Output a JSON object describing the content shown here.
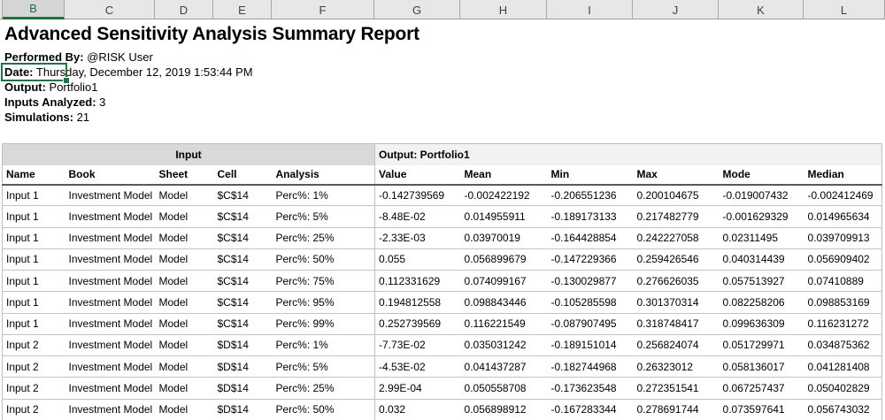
{
  "colors": {
    "accent_green": "#217346",
    "header_bar_bg": "#e7e7e7",
    "selected_header_bg": "#d5d5d5",
    "band_input_bg": "#d9d9d9",
    "band_output_bg": "#f2f2f2",
    "table_border": "#bfbfbf"
  },
  "spreadsheet": {
    "column_headers": [
      "B",
      "C",
      "D",
      "E",
      "F",
      "G",
      "H",
      "I",
      "J",
      "K",
      "L"
    ],
    "selected_column": "B"
  },
  "report": {
    "title": "Advanced Sensitivity Analysis Summary Report",
    "meta": [
      {
        "label": "Performed By:",
        "value": " @RISK User"
      },
      {
        "label": "Date:",
        "value": " Thursday, December 12, 2019 1:53:44 PM"
      },
      {
        "label": "Output:",
        "value": " Portfolio1"
      },
      {
        "label": "Inputs Analyzed:",
        "value": " 3"
      },
      {
        "label": "Simulations:",
        "value": " 21"
      }
    ]
  },
  "table": {
    "input_band": "Input",
    "output_band": "Output: Portfolio1",
    "columns": [
      "Name",
      "Book",
      "Sheet",
      "Cell",
      "Analysis",
      "Value",
      "Mean",
      "Min",
      "Max",
      "Mode",
      "Median"
    ],
    "rows": [
      [
        "Input 1",
        "Investment Model",
        "Model",
        "$C$14",
        "Perc%: 1%",
        "-0.142739569",
        "-0.002422192",
        "-0.206551236",
        "0.200104675",
        "-0.019007432",
        "-0.002412469"
      ],
      [
        "Input 1",
        "Investment Model",
        "Model",
        "$C$14",
        "Perc%: 5%",
        "-8.48E-02",
        "0.014955911",
        "-0.189173133",
        "0.217482779",
        "-0.001629329",
        "0.014965634"
      ],
      [
        "Input 1",
        "Investment Model",
        "Model",
        "$C$14",
        "Perc%: 25%",
        "-2.33E-03",
        "0.03970019",
        "-0.164428854",
        "0.242227058",
        "0.02311495",
        "0.039709913"
      ],
      [
        "Input 1",
        "Investment Model",
        "Model",
        "$C$14",
        "Perc%: 50%",
        "0.055",
        "0.056899679",
        "-0.147229366",
        "0.259426546",
        "0.040314439",
        "0.056909402"
      ],
      [
        "Input 1",
        "Investment Model",
        "Model",
        "$C$14",
        "Perc%: 75%",
        "0.112331629",
        "0.074099167",
        "-0.130029877",
        "0.276626035",
        "0.057513927",
        "0.07410889"
      ],
      [
        "Input 1",
        "Investment Model",
        "Model",
        "$C$14",
        "Perc%: 95%",
        "0.194812558",
        "0.098843446",
        "-0.105285598",
        "0.301370314",
        "0.082258206",
        "0.098853169"
      ],
      [
        "Input 1",
        "Investment Model",
        "Model",
        "$C$14",
        "Perc%: 99%",
        "0.252739569",
        "0.116221549",
        "-0.087907495",
        "0.318748417",
        "0.099636309",
        "0.116231272"
      ],
      [
        "Input 2",
        "Investment Model",
        "Model",
        "$D$14",
        "Perc%: 1%",
        "-7.73E-02",
        "0.035031242",
        "-0.189151014",
        "0.256824074",
        "0.051729971",
        "0.034875362"
      ],
      [
        "Input 2",
        "Investment Model",
        "Model",
        "$D$14",
        "Perc%: 5%",
        "-4.53E-02",
        "0.041437287",
        "-0.182744968",
        "0.26323012",
        "0.058136017",
        "0.041281408"
      ],
      [
        "Input 2",
        "Investment Model",
        "Model",
        "$D$14",
        "Perc%: 25%",
        "2.99E-04",
        "0.050558708",
        "-0.173623548",
        "0.272351541",
        "0.067257437",
        "0.050402829"
      ],
      [
        "Input 2",
        "Investment Model",
        "Model",
        "$D$14",
        "Perc%: 50%",
        "0.032",
        "0.056898912",
        "-0.167283344",
        "0.278691744",
        "0.073597641",
        "0.056743032"
      ]
    ]
  }
}
